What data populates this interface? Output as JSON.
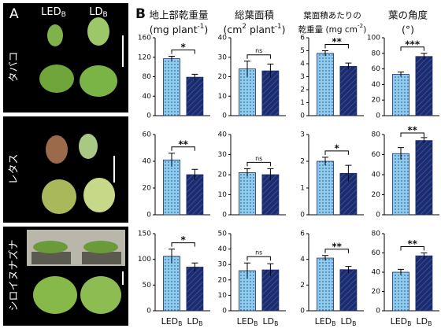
{
  "panel_a": {
    "label": "A",
    "rows": [
      "タバコ",
      "レタス",
      "シロイヌナズナ"
    ]
  },
  "panel_b": {
    "label": "B",
    "headers": [
      {
        "name": "地上部乾重量",
        "unit_pre": "(mg plant",
        "unit_sup": "-1",
        "unit_post": ")"
      },
      {
        "name": "総葉面積",
        "unit_pre": "(cm",
        "unit_mid_sup": "2",
        "unit_mid": " plant",
        "unit_sup": "-1",
        "unit_post": ")"
      },
      {
        "name": "葉面積あたりの",
        "unit_pre": "乾重量 (mg cm",
        "unit_sup": "-2",
        "unit_post": ")"
      },
      {
        "name": "葉の角度",
        "unit_pre": "(°",
        "unit_post": ")"
      }
    ]
  },
  "categories": [
    "LED",
    "LD"
  ],
  "category_subscript": "B",
  "colors": [
    "#8fcdf0",
    "#1c2b6b"
  ],
  "chart_data": [
    {
      "type": "bar",
      "values": [
        117,
        79
      ],
      "errors": [
        5,
        6
      ],
      "ylim": [
        0,
        160
      ],
      "yticks": [
        0,
        40,
        80,
        120,
        160
      ],
      "significance": "*"
    },
    {
      "type": "bar",
      "values": [
        24,
        23
      ],
      "errors": [
        4,
        3.5
      ],
      "ylim": [
        0,
        40
      ],
      "yticks": [
        0,
        10,
        20,
        30,
        40
      ],
      "significance": "ns"
    },
    {
      "type": "bar",
      "values": [
        4.8,
        3.8
      ],
      "errors": [
        0.2,
        0.25
      ],
      "ylim": [
        0,
        6
      ],
      "yticks": [
        0,
        1,
        2,
        3,
        4,
        5,
        6
      ],
      "significance": "**"
    },
    {
      "type": "bar",
      "values": [
        53,
        76
      ],
      "errors": [
        3,
        4
      ],
      "ylim": [
        0,
        100
      ],
      "yticks": [
        0,
        20,
        40,
        60,
        80,
        100
      ],
      "significance": "***"
    },
    {
      "type": "bar",
      "values": [
        41,
        30
      ],
      "errors": [
        5,
        4
      ],
      "ylim": [
        0,
        60
      ],
      "yticks": [
        0,
        20,
        40,
        60
      ],
      "significance": "**"
    },
    {
      "type": "bar",
      "values": [
        21,
        20
      ],
      "errors": [
        2,
        3
      ],
      "ylim": [
        0,
        40
      ],
      "yticks": [
        0,
        10,
        20,
        30,
        40
      ],
      "significance": "ns"
    },
    {
      "type": "bar",
      "values": [
        2.0,
        1.55
      ],
      "errors": [
        0.15,
        0.3
      ],
      "ylim": [
        0,
        3
      ],
      "yticks": [
        0,
        1,
        2,
        3
      ],
      "significance": "*"
    },
    {
      "type": "bar",
      "values": [
        61,
        74
      ],
      "errors": [
        6,
        3
      ],
      "ylim": [
        0,
        80
      ],
      "yticks": [
        0,
        20,
        40,
        60,
        80
      ],
      "significance": "**"
    },
    {
      "type": "bar",
      "values": [
        106,
        85
      ],
      "errors": [
        14,
        8
      ],
      "ylim": [
        0,
        150
      ],
      "yticks": [
        0,
        50,
        100,
        150
      ],
      "significance": "*"
    },
    {
      "type": "bar",
      "values": [
        26,
        26.5
      ],
      "errors": [
        5,
        4
      ],
      "ylim": [
        0,
        50
      ],
      "yticks": [
        0,
        10,
        20,
        30,
        40,
        50
      ],
      "significance": "ns"
    },
    {
      "type": "bar",
      "values": [
        4.1,
        3.2
      ],
      "errors": [
        0.2,
        0.25
      ],
      "ylim": [
        0,
        6
      ],
      "yticks": [
        0,
        2,
        4,
        6
      ],
      "significance": "**"
    },
    {
      "type": "bar",
      "values": [
        40,
        57
      ],
      "errors": [
        3,
        3
      ],
      "ylim": [
        0,
        80
      ],
      "yticks": [
        0,
        20,
        40,
        60,
        80
      ],
      "significance": "**"
    }
  ]
}
